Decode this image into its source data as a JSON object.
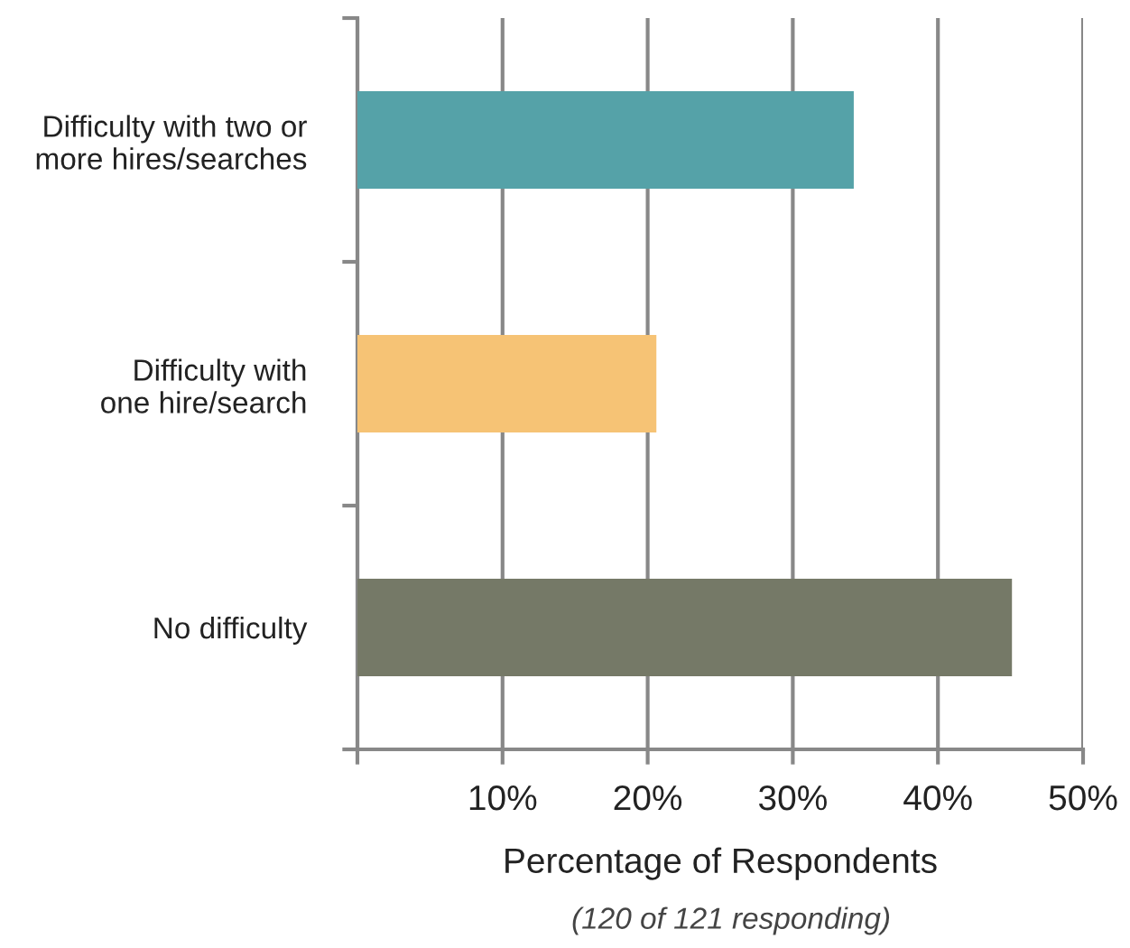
{
  "chart_data": {
    "type": "bar",
    "orientation": "horizontal",
    "categories": [
      "Difficulty with two or\nmore hires/searches",
      "Difficulty with\none hire/search",
      "No difficulty"
    ],
    "values": [
      34.2,
      20.6,
      45.1
    ],
    "colors": [
      "#55a2a8",
      "#f6c375",
      "#757967"
    ],
    "xlim": [
      0,
      50
    ],
    "xticks": [
      {
        "value": 0,
        "label": null
      },
      {
        "value": 10,
        "label": "10%"
      },
      {
        "value": 20,
        "label": "20%"
      },
      {
        "value": 30,
        "label": "30%"
      },
      {
        "value": 40,
        "label": "40%"
      },
      {
        "value": 50,
        "label": "50%"
      }
    ],
    "xlabel": "Percentage of Respondents",
    "annotations": [
      "(120 of 121 responding)"
    ],
    "grid": "x"
  }
}
